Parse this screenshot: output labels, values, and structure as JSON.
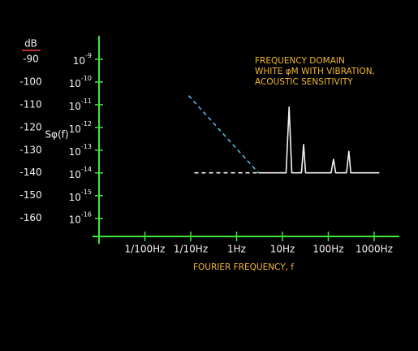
{
  "chart_data": {
    "type": "line",
    "unit_title": "dB",
    "ylabel": "Sφ(f)",
    "xlabel": "FOURIER FREQUENCY, f",
    "annotation": [
      "FREQUENCY DOMAIN",
      "WHITE φM WITH VIBRATION,",
      "ACOUSTIC SENSITIVITY"
    ],
    "xscale": "log",
    "xlim": [
      0.001,
      4000
    ],
    "xticks": [
      {
        "value": 0.01,
        "label": "1/100Hz"
      },
      {
        "value": 0.1,
        "label": "1/10Hz"
      },
      {
        "value": 1,
        "label": "1Hz"
      },
      {
        "value": 10,
        "label": "10Hz"
      },
      {
        "value": 100,
        "label": "100Hz"
      },
      {
        "value": 1000,
        "label": "1000Hz"
      }
    ],
    "ylim": [
      -168,
      -80
    ],
    "yticks": [
      -90,
      -100,
      -110,
      -120,
      -130,
      -140,
      -150,
      -160
    ],
    "y2scale": "log",
    "y2lim": [
      1.6e-17,
      1e-08
    ],
    "y2ticks": [
      {
        "value": 1e-09,
        "label": "10",
        "exponent": "-9"
      },
      {
        "value": 1e-10,
        "label": "10",
        "exponent": "-10"
      },
      {
        "value": 1e-11,
        "label": "10",
        "exponent": "-11"
      },
      {
        "value": 1e-12,
        "label": "10",
        "exponent": "-12"
      },
      {
        "value": 1e-13,
        "label": "10",
        "exponent": "-13"
      },
      {
        "value": 1e-14,
        "label": "10",
        "exponent": "-14"
      },
      {
        "value": 1e-15,
        "label": "10",
        "exponent": "-15"
      },
      {
        "value": 1e-16,
        "label": "10",
        "exponent": "-16"
      }
    ],
    "axis_color": "#3ee63e",
    "unit_color": "#e8413a",
    "series": [
      {
        "color": "#f2f2f2",
        "dashed": true,
        "x": [
          0.12,
          3
        ],
        "values": [
          -140,
          -140
        ]
      },
      {
        "color": "#4fb8e8",
        "dashed": true,
        "x": [
          0.09,
          3
        ],
        "values": [
          -106,
          -140
        ]
      },
      {
        "color": "#f2f2f2",
        "dashed": false,
        "x": [
          3,
          12,
          14,
          16,
          26,
          29,
          32,
          115,
          130,
          145,
          250,
          280,
          310,
          1300
        ],
        "values": [
          -140,
          -140,
          -111,
          -140,
          -140,
          -127.5,
          -140,
          -140,
          -134,
          -140,
          -140,
          -130.5,
          -140,
          -140
        ]
      }
    ]
  }
}
